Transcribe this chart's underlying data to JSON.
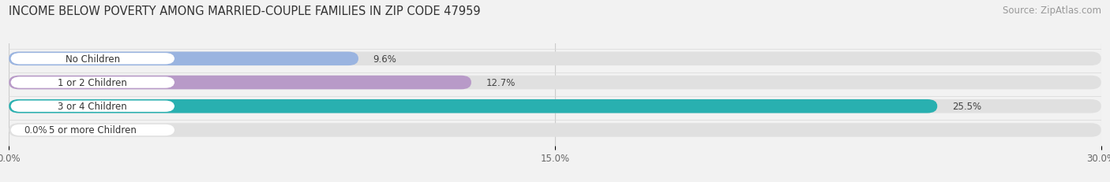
{
  "title": "INCOME BELOW POVERTY AMONG MARRIED-COUPLE FAMILIES IN ZIP CODE 47959",
  "source": "Source: ZipAtlas.com",
  "categories": [
    "No Children",
    "1 or 2 Children",
    "3 or 4 Children",
    "5 or more Children"
  ],
  "values": [
    9.6,
    12.7,
    25.5,
    0.0
  ],
  "bar_colors": [
    "#9ab4e0",
    "#b89ac8",
    "#29b0b0",
    "#a8b0e0"
  ],
  "xlim": [
    0,
    30.0
  ],
  "xticks": [
    0.0,
    15.0,
    30.0
  ],
  "xtick_labels": [
    "0.0%",
    "15.0%",
    "30.0%"
  ],
  "background_color": "#f2f2f2",
  "bar_background_color": "#e0e0e0",
  "label_bg_color": "#ffffff",
  "title_fontsize": 10.5,
  "source_fontsize": 8.5,
  "label_fontsize": 8.5,
  "tick_fontsize": 8.5,
  "bar_height": 0.58,
  "figsize": [
    14.06,
    2.32
  ],
  "dpi": 100
}
